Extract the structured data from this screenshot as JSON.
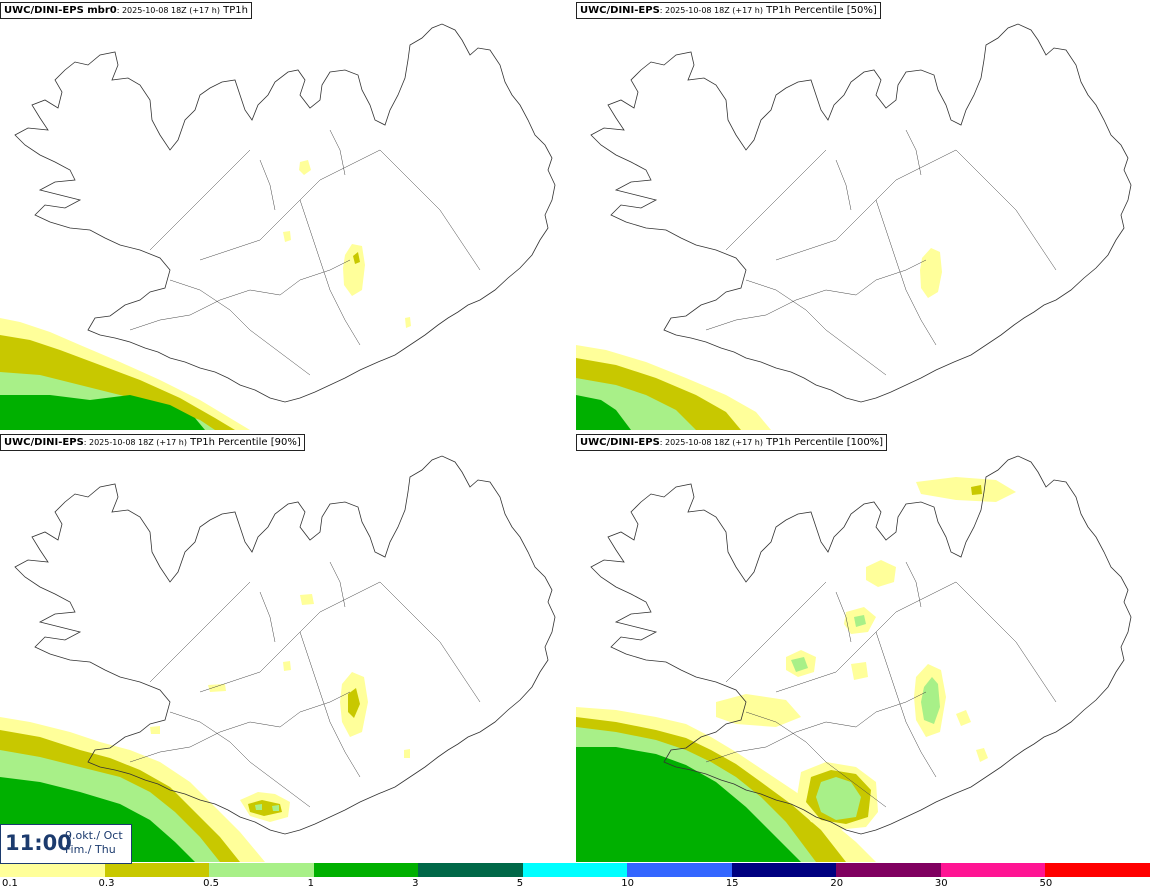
{
  "panels": [
    {
      "model": "UWC/DINI-EPS mbr0",
      "run": ": 2025-10-08 18Z (+17 h)",
      "field": " TP1h"
    },
    {
      "model": "UWC/DINI-EPS",
      "run": ": 2025-10-08 18Z (+17 h)",
      "field": " TP1h Percentile [50%]"
    },
    {
      "model": "UWC/DINI-EPS",
      "run": ": 2025-10-08 18Z (+17 h)",
      "field": " TP1h Percentile [90%]"
    },
    {
      "model": "UWC/DINI-EPS",
      "run": ": 2025-10-08 18Z (+17 h)",
      "field": " TP1h Percentile [100%]"
    }
  ],
  "valid_time": {
    "time": "11:00",
    "date_line1": "9.okt./ Oct",
    "date_line2": "Fim./ Thu"
  },
  "legend": {
    "ticks": [
      "0.1",
      "0.3",
      "0.5",
      "1",
      "3",
      "5",
      "10",
      "15",
      "20",
      "30",
      "50"
    ],
    "colors": [
      "#ffff9a",
      "#c8c800",
      "#a8f088",
      "#00b000",
      "#006848",
      "#00ffff",
      "#3366ff",
      "#000080",
      "#800060",
      "#ff1493",
      "#ff0000"
    ]
  },
  "colors": {
    "light": "#ffff9a",
    "olive": "#c8c800",
    "pale_green": "#a8f088",
    "green": "#00b000",
    "coast": "#333333"
  },
  "icons": [
    "iceland-coastline-icon"
  ]
}
